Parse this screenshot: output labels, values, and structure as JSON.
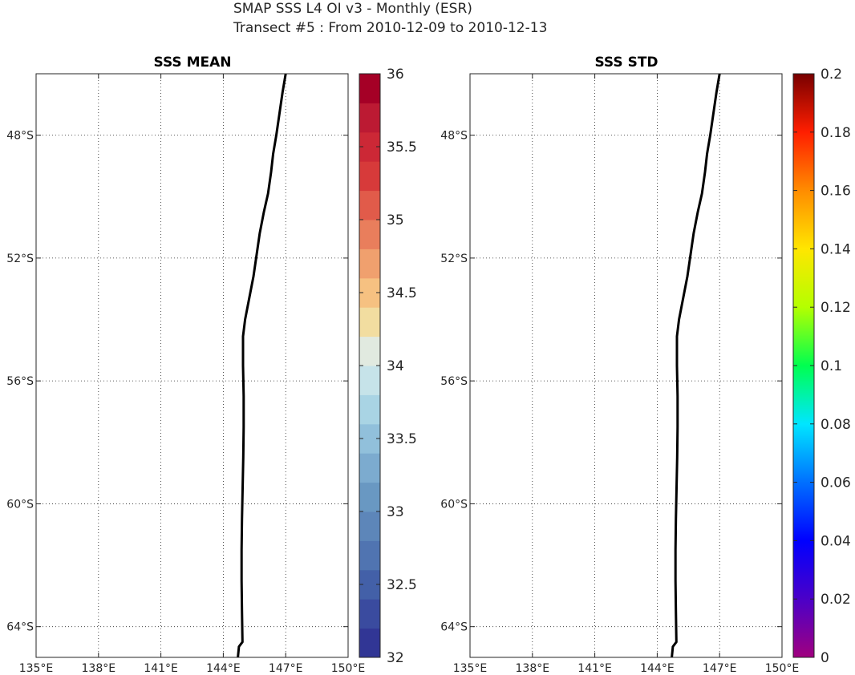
{
  "figure": {
    "title_line1": "SMAP SSS L4 OI v3 - Monthly (ESR)",
    "title_line2": "Transect #5 : From 2010-12-09 to 2010-12-13"
  },
  "map_extent": {
    "lon": [
      135,
      150
    ],
    "lat": [
      -46,
      -65
    ]
  },
  "x_ticks": [
    {
      "lon": 135,
      "label": "135°E"
    },
    {
      "lon": 138,
      "label": "138°E"
    },
    {
      "lon": 141,
      "label": "141°E"
    },
    {
      "lon": 144,
      "label": "144°E"
    },
    {
      "lon": 147,
      "label": "147°E"
    },
    {
      "lon": 150,
      "label": "150°E"
    }
  ],
  "y_ticks": [
    {
      "lat": -48,
      "label": "48°S"
    },
    {
      "lat": -52,
      "label": "52°S"
    },
    {
      "lat": -56,
      "label": "56°S"
    },
    {
      "lat": -60,
      "label": "60°S"
    },
    {
      "lat": -64,
      "label": "64°S"
    }
  ],
  "panels": [
    {
      "title": "SSS MEAN",
      "colorbar": {
        "type": "discrete",
        "range": [
          32,
          36
        ],
        "ticks": [
          "32",
          "32.5",
          "33",
          "33.5",
          "34",
          "34.5",
          "35",
          "35.5",
          "36"
        ],
        "colors": [
          "#313695",
          "#3a4b9f",
          "#4360a8",
          "#5074b1",
          "#5d86b9",
          "#6998c2",
          "#7cabcf",
          "#91c0db",
          "#a9d4e4",
          "#c6e3e9",
          "#e1eae0",
          "#f2dda0",
          "#f6c181",
          "#f0a06e",
          "#e97e5c",
          "#e15b4a",
          "#d73a3a",
          "#cc2836",
          "#bc1a33",
          "#a50026"
        ]
      }
    },
    {
      "title": "SSS STD",
      "colorbar": {
        "type": "continuous",
        "range": [
          0,
          0.2
        ],
        "ticks": [
          "0",
          "0.02",
          "0.04",
          "0.06",
          "0.08",
          "0.1",
          "0.12",
          "0.14",
          "0.16",
          "0.18",
          "0.2"
        ],
        "colors": [
          "#a0007f",
          "#4b00c8",
          "#0000ff",
          "#0070ff",
          "#00e6ff",
          "#00ff50",
          "#b4ff00",
          "#ffe600",
          "#ff8c00",
          "#ff1e00",
          "#780000"
        ]
      }
    }
  ],
  "track": {
    "color": "#000000",
    "points": [
      [
        147.0,
        -46.0
      ],
      [
        146.85,
        -46.6
      ],
      [
        146.7,
        -47.3
      ],
      [
        146.55,
        -48.0
      ],
      [
        146.4,
        -48.6
      ],
      [
        146.3,
        -49.2
      ],
      [
        146.15,
        -49.9
      ],
      [
        145.95,
        -50.5
      ],
      [
        145.75,
        -51.2
      ],
      [
        145.6,
        -51.9
      ],
      [
        145.45,
        -52.6
      ],
      [
        145.25,
        -53.3
      ],
      [
        145.05,
        -54.0
      ],
      [
        144.95,
        -54.55
      ],
      [
        144.95,
        -55.5
      ],
      [
        144.98,
        -56.5
      ],
      [
        144.98,
        -57.5
      ],
      [
        144.96,
        -58.5
      ],
      [
        144.93,
        -59.5
      ],
      [
        144.9,
        -60.5
      ],
      [
        144.88,
        -61.5
      ],
      [
        144.88,
        -62.5
      ],
      [
        144.9,
        -63.5
      ],
      [
        144.92,
        -64.5
      ],
      [
        144.75,
        -64.65
      ],
      [
        144.7,
        -65.0
      ]
    ]
  }
}
